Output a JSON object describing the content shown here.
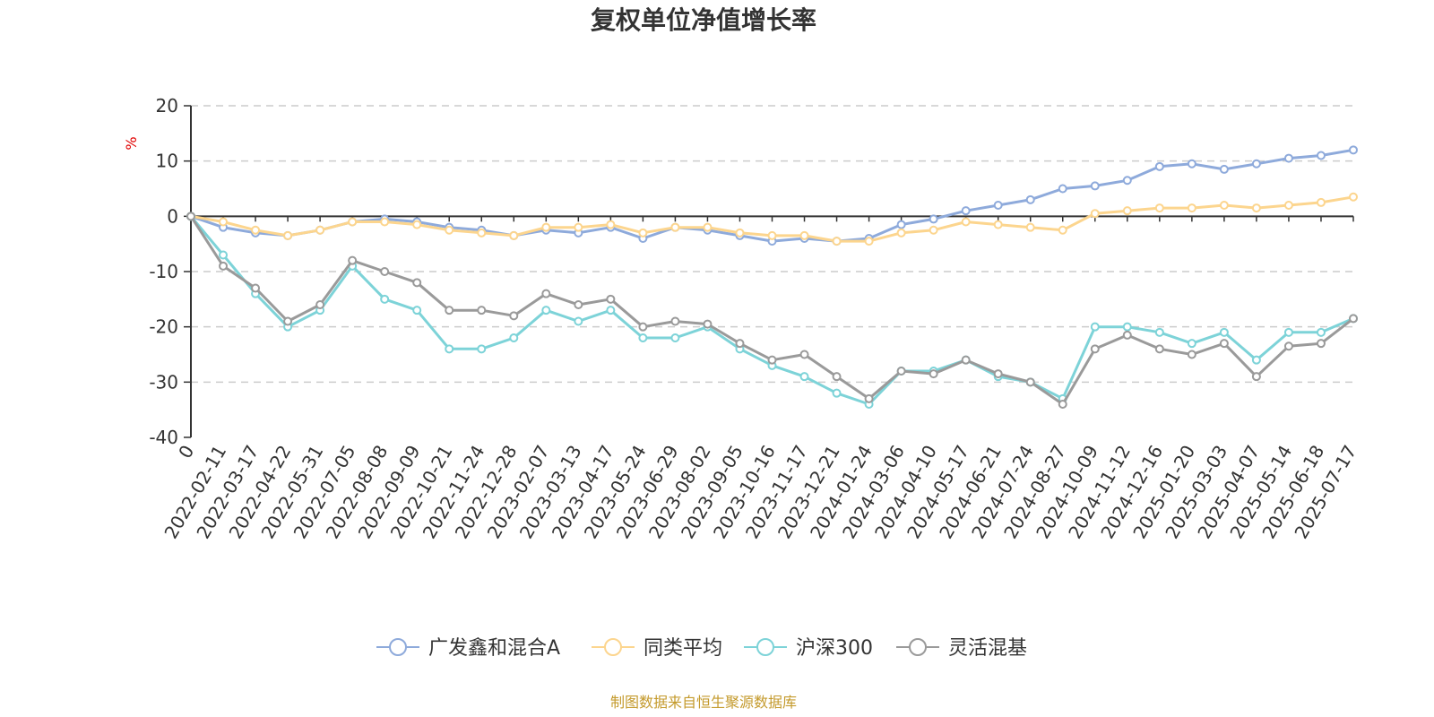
{
  "chart_data": {
    "type": "line",
    "title": "复权单位净值增长率",
    "ylabel": "%",
    "ylim": [
      -40,
      20
    ],
    "yticks": [
      20,
      10,
      0,
      -10,
      -20,
      -30,
      -40
    ],
    "xtick_labels": [
      "0",
      "2022-02-11",
      "2022-03-17",
      "2022-04-22",
      "2022-05-31",
      "2022-07-05",
      "2022-08-08",
      "2022-09-09",
      "2022-10-21",
      "2022-11-24",
      "2022-12-28",
      "2023-02-07",
      "2023-03-13",
      "2023-04-17",
      "2023-05-24",
      "2023-06-29",
      "2023-08-02",
      "2023-09-05",
      "2023-10-16",
      "2023-11-17",
      "2023-12-21",
      "2024-01-24",
      "2024-03-06",
      "2024-04-10",
      "2024-05-17",
      "2024-06-21",
      "2024-07-24",
      "2024-08-27",
      "2024-10-09",
      "2024-11-12",
      "2024-12-16",
      "2025-01-20",
      "2025-03-03",
      "2025-04-07",
      "2025-05-14",
      "2025-06-18",
      "2025-07-17"
    ],
    "grid": "horizontal dashed",
    "legend_position": "bottom",
    "series": [
      {
        "name": "广发鑫和混合A",
        "color": "#8eaadb",
        "values": [
          0,
          -2,
          -3,
          -3.5,
          -2.5,
          -1,
          -0.5,
          -1,
          -2,
          -2.5,
          -3.5,
          -2.5,
          -3,
          -2,
          -4,
          -2,
          -2.5,
          -3.5,
          -4.5,
          -4,
          -4.5,
          -4,
          -1.5,
          -0.5,
          1,
          2,
          3,
          5,
          5.5,
          6.5,
          9,
          9.5,
          8.5,
          9.5,
          10.5,
          11,
          12
        ]
      },
      {
        "name": "同类平均",
        "color": "#fcd58e",
        "values": [
          0,
          -1,
          -2.5,
          -3.5,
          -2.5,
          -1,
          -1,
          -1.5,
          -2.5,
          -3,
          -3.5,
          -2,
          -2,
          -1.5,
          -3,
          -2,
          -2,
          -3,
          -3.5,
          -3.5,
          -4.5,
          -4.5,
          -3,
          -2.5,
          -1,
          -1.5,
          -2,
          -2.5,
          0.5,
          1,
          1.5,
          1.5,
          2,
          1.5,
          2,
          2.5,
          3.5
        ]
      },
      {
        "name": "沪深300",
        "color": "#7dd3d8",
        "values": [
          0,
          -7,
          -14,
          -20,
          -17,
          -9,
          -15,
          -17,
          -24,
          -24,
          -22,
          -17,
          -19,
          -17,
          -22,
          -22,
          -20,
          -24,
          -27,
          -29,
          -32,
          -34,
          -28,
          -28,
          -26,
          -29,
          -30,
          -33,
          -20,
          -20,
          -21,
          -23,
          -21,
          -26,
          -21,
          -21,
          -18.5
        ]
      },
      {
        "name": "灵活混基",
        "color": "#9a9a9a",
        "values": [
          0,
          -9,
          -13,
          -19,
          -16,
          -8,
          -10,
          -12,
          -17,
          -17,
          -18,
          -14,
          -16,
          -15,
          -20,
          -19,
          -19.5,
          -23,
          -26,
          -25,
          -29,
          -33,
          -28,
          -28.5,
          -26,
          -28.5,
          -30,
          -34,
          -24,
          -21.5,
          -24,
          -25,
          -23,
          -29,
          -23.5,
          -23,
          -18.5
        ]
      }
    ]
  },
  "source_note": "制图数据来自恒生聚源数据库"
}
